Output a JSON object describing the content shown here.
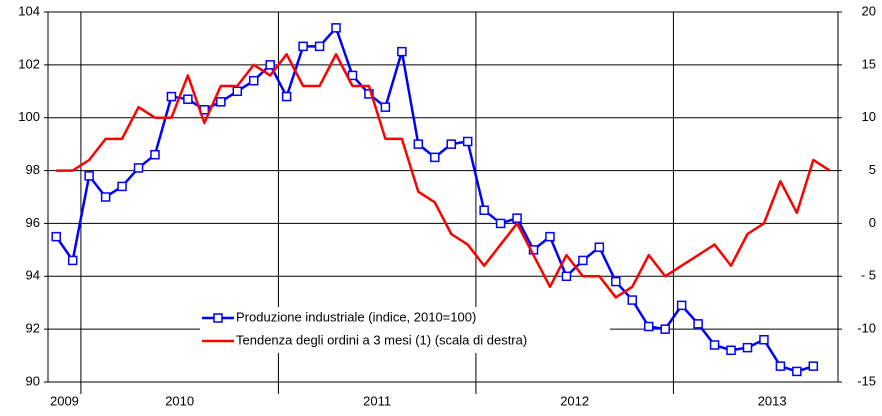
{
  "chart_data": {
    "type": "line",
    "categories": [
      "2009",
      null,
      null,
      null,
      null,
      null,
      null,
      null,
      "2010",
      null,
      null,
      null,
      null,
      null,
      null,
      null,
      null,
      null,
      null,
      null,
      "2011",
      null,
      null,
      null,
      null,
      null,
      null,
      null,
      null,
      null,
      null,
      null,
      "2012",
      null,
      null,
      null,
      null,
      null,
      null,
      null,
      null,
      null,
      null,
      null,
      "2013",
      null,
      null,
      null
    ],
    "series": [
      {
        "name": "Produzione industriale (indice, 2010=100)",
        "color": "#0000ff",
        "marker": "square",
        "values": [
          95.5,
          94.6,
          97.8,
          97.0,
          97.4,
          98.1,
          98.6,
          100.8,
          100.7,
          100.3,
          100.6,
          101.0,
          101.4,
          102.0,
          100.8,
          102.7,
          102.7,
          103.4,
          101.6,
          100.9,
          100.4,
          102.5,
          99.0,
          98.5,
          99.0,
          99.1,
          96.5,
          96.0,
          96.2,
          95.0,
          95.5,
          94.0,
          94.6,
          95.1,
          93.8,
          93.1,
          92.1,
          92.0,
          92.9,
          92.2,
          91.4,
          91.2,
          91.3,
          91.6,
          90.6,
          90.4,
          90.6,
          null
        ]
      },
      {
        "name": "Tendenza degli ordini a 3 mesi (1) (scala di destra)",
        "color": "#ff0000",
        "axis": "y2",
        "values": [
          5,
          5,
          6,
          8,
          8,
          11,
          10,
          10,
          14,
          9.5,
          13,
          13,
          15,
          14,
          16,
          13,
          13,
          16,
          13,
          13,
          8,
          8,
          3,
          2,
          -1,
          -2,
          -4,
          -2,
          0,
          -3,
          -6,
          -3,
          -5,
          -5,
          -7,
          -6,
          -3,
          -5,
          -4,
          -3,
          -2,
          -4,
          -1,
          0,
          4,
          1,
          6,
          5
        ]
      }
    ],
    "ylim": [
      90,
      104
    ],
    "yticks": [
      90,
      92,
      94,
      96,
      98,
      100,
      102,
      104
    ],
    "y2lim": [
      -15,
      20
    ],
    "y2ticks": [
      -15,
      -10,
      {
        "value": -5,
        "label": "- 5"
      },
      0,
      5,
      10,
      15,
      20
    ],
    "grid": true,
    "legend": "lower center"
  }
}
